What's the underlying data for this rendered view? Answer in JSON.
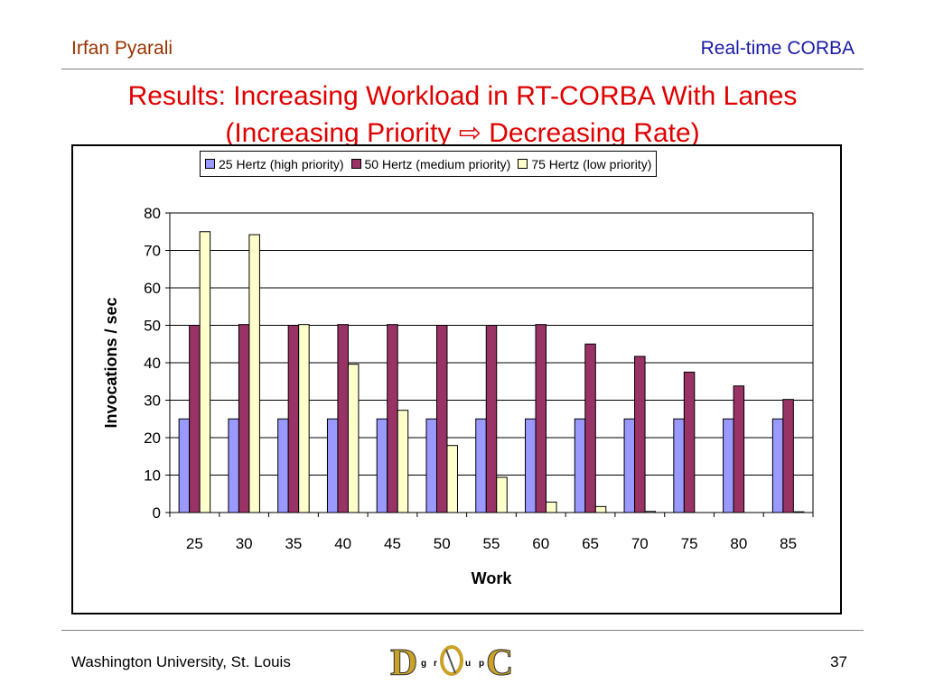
{
  "header": {
    "author": "Irfan Pyarali",
    "topic": "Real-time CORBA"
  },
  "slide": {
    "title_line1": "Results: Increasing Workload in RT-CORBA With Lanes",
    "title_line2": "(Increasing Priority ⇨ Decreasing Rate)"
  },
  "chart_data": {
    "type": "bar",
    "categories": [
      "25",
      "30",
      "35",
      "40",
      "45",
      "50",
      "55",
      "60",
      "65",
      "70",
      "75",
      "80",
      "85"
    ],
    "series": [
      {
        "name": "25 Hertz (high priority)",
        "color": "#9999ff",
        "values": [
          25,
          25,
          25,
          25,
          25,
          25,
          25,
          25,
          25,
          25,
          25,
          25,
          25
        ]
      },
      {
        "name": "50 Hertz (medium priority)",
        "color": "#993366",
        "values": [
          50,
          50.2,
          50,
          50.2,
          50.2,
          50,
          50,
          50.2,
          45,
          41.7,
          37.5,
          33.8,
          30.2
        ]
      },
      {
        "name": "75 Hertz (low priority)",
        "color": "#ffffcc",
        "values": [
          75,
          74.2,
          50.2,
          39.6,
          27.3,
          17.9,
          9.4,
          2.8,
          1.6,
          0.3,
          0,
          0,
          0.2
        ]
      }
    ],
    "xlabel": "Work",
    "ylabel": "Invocations / sec",
    "ylim": [
      0,
      80
    ],
    "yticks": [
      0,
      10,
      20,
      30,
      40,
      50,
      60,
      70,
      80
    ],
    "grid": true,
    "legend_position": "top"
  },
  "footer": {
    "institution": "Washington University, St. Louis",
    "page": "37"
  },
  "logo": {
    "big1": "D",
    "small1": "g",
    "small2": "r",
    "small3": "u",
    "small4": "p",
    "big2": "C"
  }
}
